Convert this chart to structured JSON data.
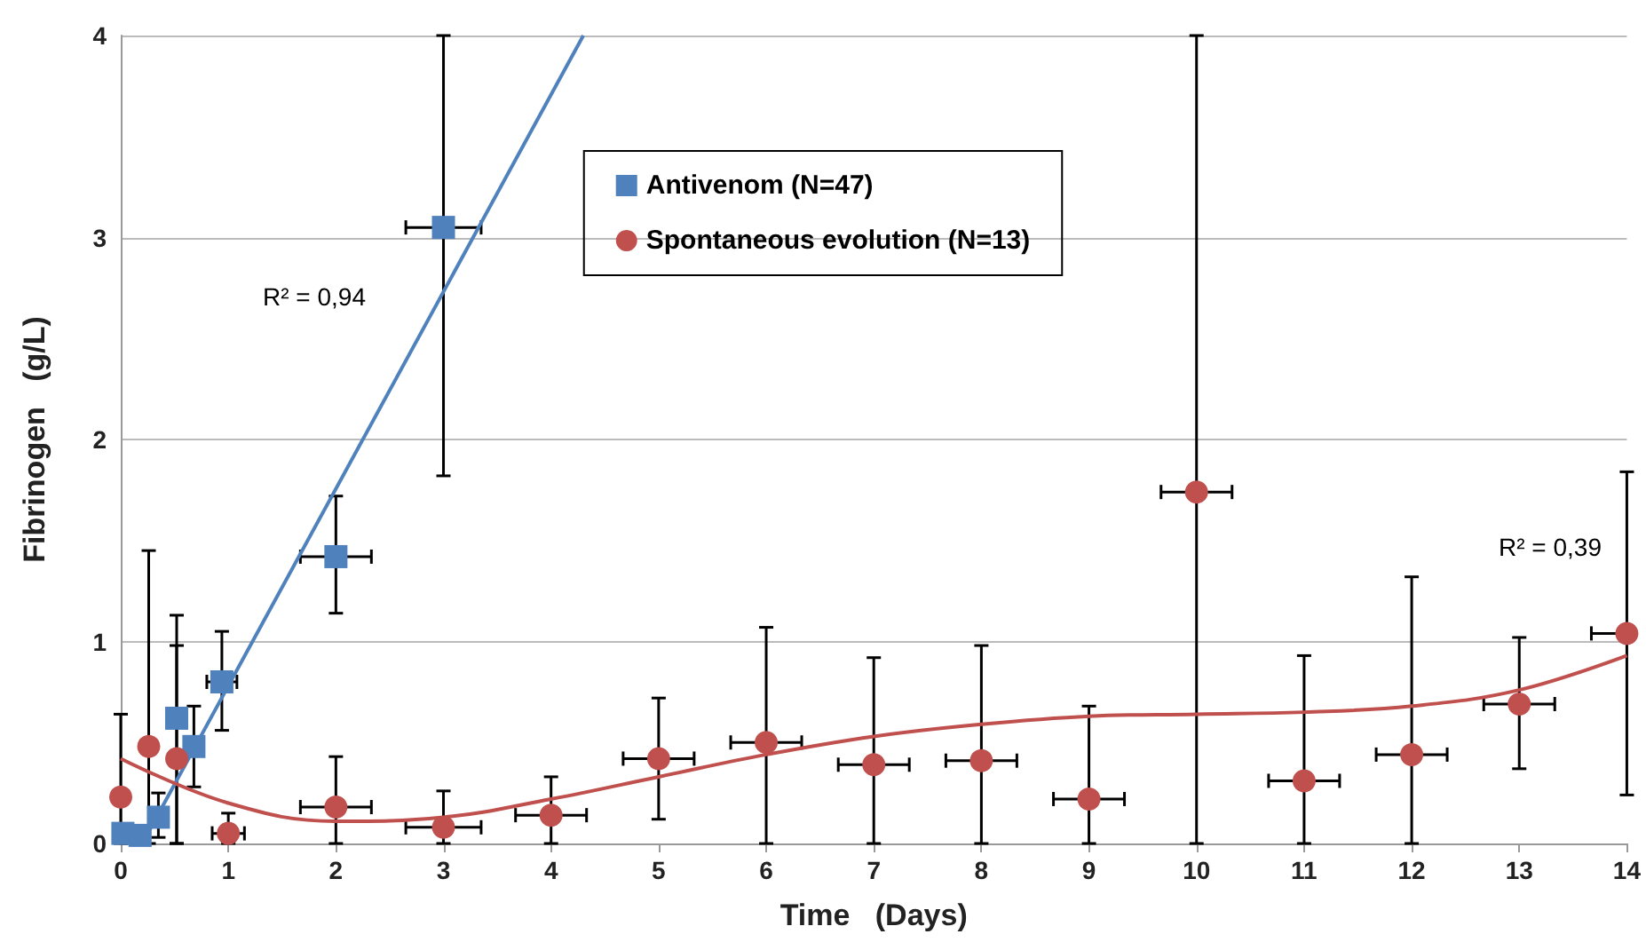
{
  "chart_data": {
    "type": "scatter",
    "xlabel": "Time   (Days)",
    "ylabel": "Fibrinogen   (g/L)",
    "xlim": [
      0,
      14
    ],
    "xticks": [
      0,
      1,
      2,
      3,
      4,
      5,
      6,
      7,
      8,
      9,
      10,
      11,
      12,
      13,
      14
    ],
    "ylim": [
      0,
      4
    ],
    "yticks": [
      0,
      1,
      2,
      3,
      4
    ],
    "grid": "y",
    "legend": "top",
    "series": [
      {
        "name": "Antivenom (N=47)",
        "color": "#4f81bd",
        "marker": "square",
        "x": [
          0.02,
          0.18,
          0.35,
          0.52,
          0.68,
          0.94,
          2,
          3
        ],
        "values": [
          0.05,
          0.04,
          0.13,
          0.62,
          0.48,
          0.8,
          1.42,
          3.05
        ],
        "errors": [
          null,
          null,
          [
            0.03,
            0.25
          ],
          [
            0,
            1.13
          ],
          [
            0.28,
            0.68
          ],
          [
            0.56,
            1.05
          ],
          [
            1.14,
            1.72
          ],
          [
            1.82,
            4
          ]
        ],
        "xerrors": [
          null,
          null,
          null,
          null,
          null,
          [
            0.8,
            1.08
          ],
          [
            1.67,
            2.33
          ],
          [
            2.65,
            3.35
          ]
        ]
      },
      {
        "name": "Spontaneous evolution (N=13)",
        "color": "#c0504d",
        "marker": "circle",
        "x": [
          0,
          0.26,
          0.52,
          1,
          2,
          3,
          4,
          5,
          6,
          7,
          8,
          9,
          10,
          11,
          12,
          13,
          14
        ],
        "values": [
          0.23,
          0.48,
          0.42,
          0.05,
          0.18,
          0.08,
          0.14,
          0.42,
          0.5,
          0.39,
          0.41,
          0.22,
          1.74,
          0.31,
          0.44,
          0.69,
          1.04
        ],
        "errors": [
          [
            0,
            0.64
          ],
          [
            0,
            1.45
          ],
          [
            0,
            0.98
          ],
          [
            0,
            0.15
          ],
          [
            0,
            0.43
          ],
          [
            0,
            0.26
          ],
          [
            0,
            0.33
          ],
          [
            0.12,
            0.72
          ],
          [
            0,
            1.07
          ],
          [
            0,
            0.92
          ],
          [
            0,
            0.98
          ],
          [
            0,
            0.68
          ],
          [
            0,
            4
          ],
          [
            0,
            0.93
          ],
          [
            0,
            1.32
          ],
          [
            0.37,
            1.02
          ],
          [
            0.24,
            1.84
          ]
        ],
        "xerrors": [
          null,
          null,
          null,
          [
            0.85,
            1.15
          ],
          [
            1.67,
            2.33
          ],
          [
            2.65,
            3.35
          ],
          [
            3.67,
            4.33
          ],
          [
            4.67,
            5.33
          ],
          [
            5.67,
            6.33
          ],
          [
            6.67,
            7.33
          ],
          [
            7.67,
            8.33
          ],
          [
            8.67,
            9.33
          ],
          [
            9.67,
            10.33
          ],
          [
            10.67,
            11.33
          ],
          [
            11.67,
            12.33
          ],
          [
            12.67,
            13.33
          ],
          [
            13.67,
            14
          ]
        ]
      },
      {
        "type": "line",
        "color": "#4f81bd",
        "marker": "none",
        "line_style": "solid",
        "x": [
          0.2,
          4.3
        ],
        "values": [
          0,
          4
        ]
      },
      {
        "type": "line",
        "color": "#c0504d",
        "marker": "none",
        "line_style": "solid",
        "x": [
          0,
          1,
          2,
          3,
          4,
          5,
          6,
          7,
          8,
          9,
          10,
          11,
          12,
          13,
          14
        ],
        "values": [
          0.42,
          0.2,
          0.11,
          0.13,
          0.22,
          0.33,
          0.44,
          0.53,
          0.59,
          0.63,
          0.64,
          0.65,
          0.68,
          0.76,
          0.93
        ]
      }
    ],
    "annotations": [
      "R² = 0,94",
      "R² = 0,39"
    ]
  }
}
